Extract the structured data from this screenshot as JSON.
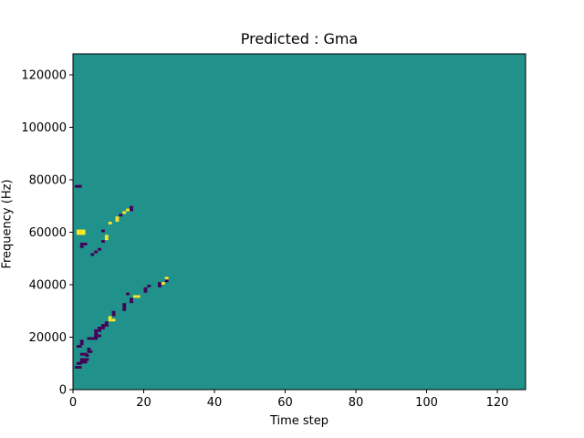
{
  "chart_data": {
    "type": "heatmap",
    "title": "Predicted : Gma",
    "xlabel": "Time step",
    "ylabel": "Frequency (Hz)",
    "xlim": [
      0,
      128
    ],
    "ylim": [
      0,
      128000
    ],
    "x_ticks": [
      0,
      20,
      40,
      60,
      80,
      100,
      120
    ],
    "y_ticks": [
      0,
      20000,
      40000,
      60000,
      80000,
      100000,
      120000
    ],
    "y_tick_labels": [
      "0",
      "20000",
      "40000",
      "60000",
      "80000",
      "100000",
      "120000"
    ],
    "grid": false,
    "colormap": [
      "#440154",
      "#21918c",
      "#fde725"
    ],
    "background_value": 0,
    "value_levels": {
      "low": -1,
      "mid": 0,
      "high": 1
    },
    "cells": [
      [
        0.5,
        8,
        -1
      ],
      [
        1,
        8,
        -1
      ],
      [
        1.5,
        8,
        -1
      ],
      [
        1,
        9.5,
        -1
      ],
      [
        1.5,
        9.5,
        -1
      ],
      [
        2,
        10,
        -1
      ],
      [
        2.5,
        10,
        -1
      ],
      [
        3,
        10,
        -1
      ],
      [
        2,
        11,
        -1
      ],
      [
        3,
        11,
        -1
      ],
      [
        3.5,
        11,
        -1
      ],
      [
        2,
        13,
        -1
      ],
      [
        2.5,
        13,
        -1
      ],
      [
        3,
        13,
        -1
      ],
      [
        3.5,
        12.5,
        -1
      ],
      [
        4,
        14,
        -1
      ],
      [
        4.5,
        14,
        -1
      ],
      [
        4,
        15,
        -1
      ],
      [
        1,
        16,
        -1
      ],
      [
        1.5,
        16,
        -1
      ],
      [
        2,
        17,
        -1
      ],
      [
        2,
        18,
        -1
      ],
      [
        4,
        19,
        -1
      ],
      [
        5,
        19,
        -1
      ],
      [
        5.5,
        19,
        -1
      ],
      [
        6,
        19,
        -1
      ],
      [
        6,
        20,
        -1
      ],
      [
        6.5,
        20,
        -1
      ],
      [
        7,
        20,
        -1
      ],
      [
        6,
        21,
        -1
      ],
      [
        6,
        22,
        -1
      ],
      [
        7,
        22,
        -1
      ],
      [
        7,
        23,
        -1
      ],
      [
        8,
        23,
        -1
      ],
      [
        8,
        24,
        -1
      ],
      [
        9,
        24,
        -1
      ],
      [
        9,
        25,
        -1
      ],
      [
        10,
        26,
        1
      ],
      [
        11,
        26,
        1
      ],
      [
        10,
        27,
        1
      ],
      [
        11,
        28,
        -1
      ],
      [
        11,
        29,
        -1
      ],
      [
        14,
        30,
        -1
      ],
      [
        14,
        31,
        -1
      ],
      [
        14,
        32,
        -1
      ],
      [
        16,
        33,
        -1
      ],
      [
        16,
        34,
        -1
      ],
      [
        17,
        35,
        1
      ],
      [
        18,
        35,
        1
      ],
      [
        15,
        36,
        -1
      ],
      [
        20,
        37,
        -1
      ],
      [
        20,
        38,
        -1
      ],
      [
        21,
        39,
        -1
      ],
      [
        24,
        39,
        -1
      ],
      [
        24,
        40,
        -1
      ],
      [
        25,
        40,
        1
      ],
      [
        26,
        41,
        -1
      ],
      [
        26,
        42,
        1
      ],
      [
        2,
        54,
        -1
      ],
      [
        2,
        55,
        -1
      ],
      [
        3,
        55,
        -1
      ],
      [
        0.5,
        77,
        -1
      ],
      [
        1,
        77,
        -1
      ],
      [
        1.5,
        77,
        -1
      ],
      [
        1,
        59,
        1
      ],
      [
        1.5,
        59,
        1
      ],
      [
        2,
        59,
        1
      ],
      [
        2.5,
        59,
        1
      ],
      [
        1,
        60,
        1
      ],
      [
        1.5,
        60,
        1
      ],
      [
        2,
        60,
        1
      ],
      [
        2.5,
        60,
        1
      ],
      [
        5,
        51,
        -1
      ],
      [
        6,
        52,
        -1
      ],
      [
        7,
        53,
        -1
      ],
      [
        8,
        56,
        -1
      ],
      [
        9,
        57,
        1
      ],
      [
        9,
        58,
        1
      ],
      [
        8,
        60,
        -1
      ],
      [
        10,
        63,
        1
      ],
      [
        12,
        64,
        1
      ],
      [
        12,
        65,
        1
      ],
      [
        13,
        66,
        -1
      ],
      [
        14,
        67,
        1
      ],
      [
        15,
        68,
        1
      ],
      [
        16,
        68,
        -1
      ],
      [
        16,
        69,
        -1
      ]
    ]
  }
}
